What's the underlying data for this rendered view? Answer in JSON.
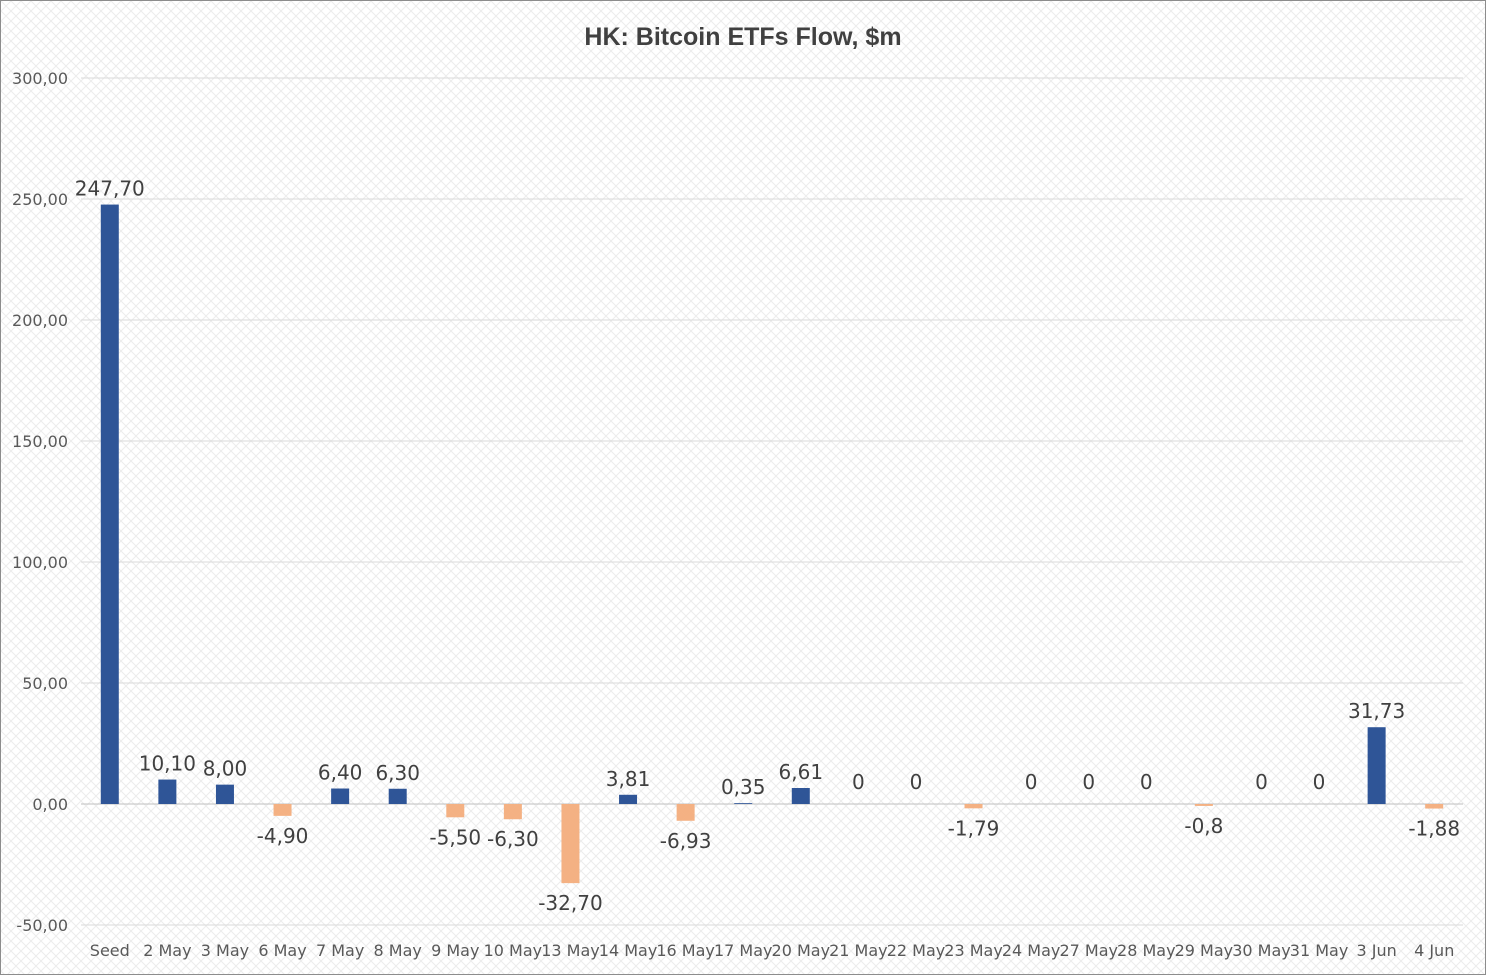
{
  "chart_data": {
    "type": "bar",
    "title": "HK: Bitcoin ETFs Flow, $m",
    "categories": [
      "Seed",
      "2 May",
      "3 May",
      "6 May",
      "7 May",
      "8 May",
      "9 May",
      "10 May",
      "13 May",
      "14 May",
      "16 May",
      "17 May",
      "20 May",
      "21 May",
      "22 May",
      "23 May",
      "24 May",
      "27 May",
      "28 May",
      "29 May",
      "30 May",
      "31 May",
      "3 Jun",
      "4 Jun"
    ],
    "values": [
      247.7,
      10.1,
      8.0,
      -4.9,
      6.4,
      6.3,
      -5.5,
      -6.3,
      -32.7,
      3.81,
      -6.93,
      0.35,
      6.61,
      0,
      0,
      -1.79,
      0,
      0,
      0,
      -0.8,
      0,
      0,
      31.73,
      -1.88
    ],
    "data_labels": [
      "247,70",
      "10,10",
      "8,00",
      "-4,90",
      "6,40",
      "6,30",
      "-5,50",
      "-6,30",
      "-32,70",
      "3,81",
      "-6,93",
      "0,35",
      "6,61",
      "0",
      "0",
      "-1,79",
      "0",
      "0",
      "0",
      "-0,8",
      "0",
      "0",
      "31,73",
      "-1,88"
    ],
    "ylim": [
      -50,
      300
    ],
    "yticks": [
      -50,
      0,
      50,
      100,
      150,
      200,
      250,
      300
    ],
    "ytick_labels": [
      "-50,00",
      "0,00",
      "50,00",
      "100,00",
      "150,00",
      "200,00",
      "250,00",
      "300,00"
    ],
    "grid": true,
    "legend": "none",
    "xlabel": "",
    "ylabel": "",
    "colors": {
      "positive": "#2f5597",
      "negative": "#f4b183",
      "background_pattern": "#e8e8e8"
    }
  }
}
